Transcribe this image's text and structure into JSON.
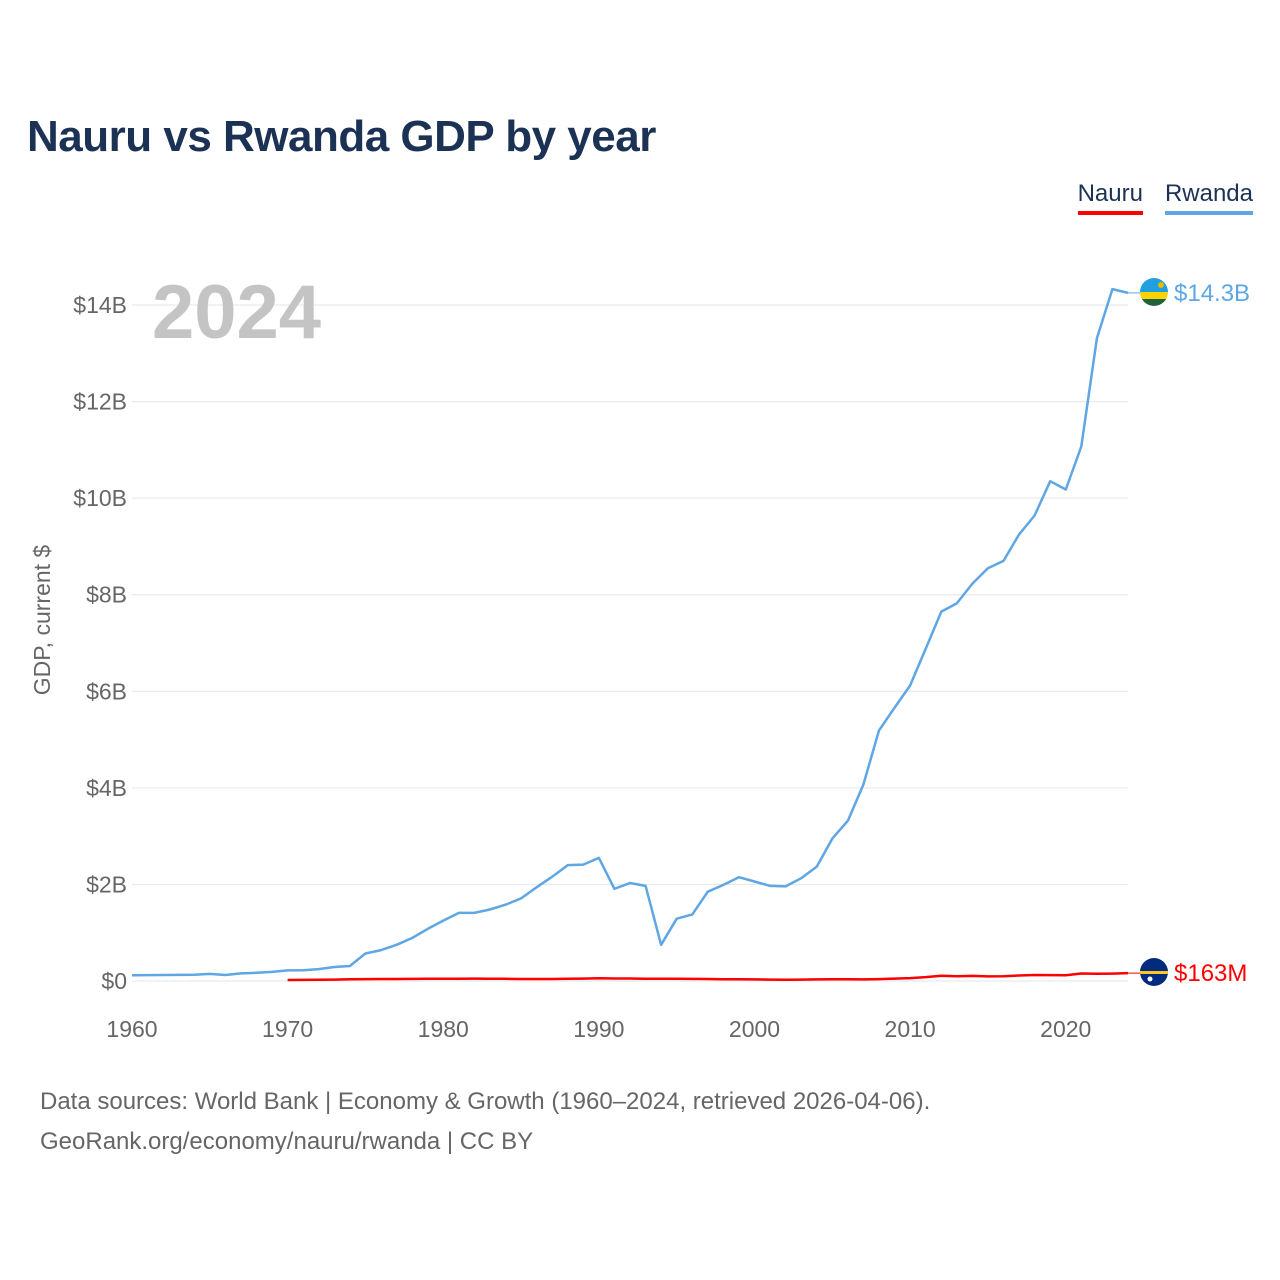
{
  "title": "Nauru vs Rwanda GDP by year",
  "legend": [
    {
      "name": "Nauru",
      "color": "#ff0000"
    },
    {
      "name": "Rwanda",
      "color": "#5ea6e4"
    }
  ],
  "footer": {
    "line1": "Data sources: World Bank | Economy & Growth (1960–2024, retrieved 2026-04-06).",
    "line2": "GeoRank.org/economy/nauru/rwanda | CC BY"
  },
  "chart_data": {
    "type": "line",
    "title": "Nauru vs Rwanda GDP by year",
    "ylabel": "GDP, current $",
    "xlabel": "",
    "year_watermark": "2024",
    "xlim": [
      1960,
      2024
    ],
    "ylim": [
      0,
      14000000000
    ],
    "x_ticks": [
      1960,
      1970,
      1980,
      1990,
      2000,
      2010,
      2020
    ],
    "y_ticks": [
      {
        "value": 0,
        "label": "$0"
      },
      {
        "value": 2000000000,
        "label": "$2B"
      },
      {
        "value": 4000000000,
        "label": "$4B"
      },
      {
        "value": 6000000000,
        "label": "$6B"
      },
      {
        "value": 8000000000,
        "label": "$8B"
      },
      {
        "value": 10000000000,
        "label": "$10B"
      },
      {
        "value": 12000000000,
        "label": "$12B"
      },
      {
        "value": 14000000000,
        "label": "$14B"
      }
    ],
    "grid": true,
    "series": [
      {
        "name": "Rwanda",
        "color": "#5ea6e4",
        "end_label": "$14.3B",
        "flag_icon": "rwanda-flag-icon",
        "x": [
          1960,
          1961,
          1962,
          1963,
          1964,
          1965,
          1966,
          1967,
          1968,
          1969,
          1970,
          1971,
          1972,
          1973,
          1974,
          1975,
          1976,
          1977,
          1978,
          1979,
          1980,
          1981,
          1982,
          1983,
          1984,
          1985,
          1986,
          1987,
          1988,
          1989,
          1990,
          1991,
          1992,
          1993,
          1994,
          1995,
          1996,
          1997,
          1998,
          1999,
          2000,
          2001,
          2002,
          2003,
          2004,
          2005,
          2006,
          2007,
          2008,
          2009,
          2010,
          2011,
          2012,
          2013,
          2014,
          2015,
          2016,
          2017,
          2018,
          2019,
          2020,
          2021,
          2022,
          2023,
          2024
        ],
        "values": [
          119000000,
          122000000,
          125000000,
          126000000,
          129000000,
          148000000,
          125000000,
          158000000,
          169000000,
          188000000,
          219000000,
          223000000,
          246000000,
          290000000,
          310000000,
          570000000,
          640000000,
          750000000,
          890000000,
          1080000000,
          1250000000,
          1410000000,
          1410000000,
          1480000000,
          1580000000,
          1710000000,
          1940000000,
          2160000000,
          2400000000,
          2410000000,
          2550000000,
          1910000000,
          2030000000,
          1970000000,
          750000000,
          1290000000,
          1380000000,
          1850000000,
          1990000000,
          2150000000,
          2060000000,
          1970000000,
          1960000000,
          2130000000,
          2370000000,
          2950000000,
          3320000000,
          4070000000,
          5190000000,
          5660000000,
          6120000000,
          6880000000,
          7650000000,
          7820000000,
          8230000000,
          8550000000,
          8700000000,
          9250000000,
          9640000000,
          10350000000,
          10180000000,
          11070000000,
          13310000000,
          14330000000,
          14250000000
        ]
      },
      {
        "name": "Nauru",
        "color": "#ff0000",
        "end_label": "$163M",
        "flag_icon": "nauru-flag-icon",
        "x": [
          1970,
          1971,
          1972,
          1973,
          1974,
          1975,
          1976,
          1977,
          1978,
          1979,
          1980,
          1981,
          1982,
          1983,
          1984,
          1985,
          1986,
          1987,
          1988,
          1989,
          1990,
          1991,
          1992,
          1993,
          1994,
          1995,
          1996,
          1997,
          1998,
          1999,
          2000,
          2001,
          2002,
          2003,
          2004,
          2005,
          2006,
          2007,
          2008,
          2009,
          2010,
          2011,
          2012,
          2013,
          2014,
          2015,
          2016,
          2017,
          2018,
          2019,
          2020,
          2021,
          2022,
          2023,
          2024
        ],
        "values": [
          20000000,
          22000000,
          25000000,
          28000000,
          35000000,
          40000000,
          42000000,
          42000000,
          43000000,
          45000000,
          46000000,
          48000000,
          50000000,
          48000000,
          45000000,
          42000000,
          42000000,
          42000000,
          45000000,
          50000000,
          55000000,
          52000000,
          52000000,
          48000000,
          45000000,
          45000000,
          43000000,
          42000000,
          38000000,
          35000000,
          33000000,
          30000000,
          27000000,
          30000000,
          33000000,
          35000000,
          35000000,
          33000000,
          40000000,
          50000000,
          60000000,
          80000000,
          110000000,
          100000000,
          105000000,
          95000000,
          100000000,
          114000000,
          125000000,
          122000000,
          120000000,
          155000000,
          150000000,
          154000000,
          163000000
        ]
      }
    ]
  }
}
